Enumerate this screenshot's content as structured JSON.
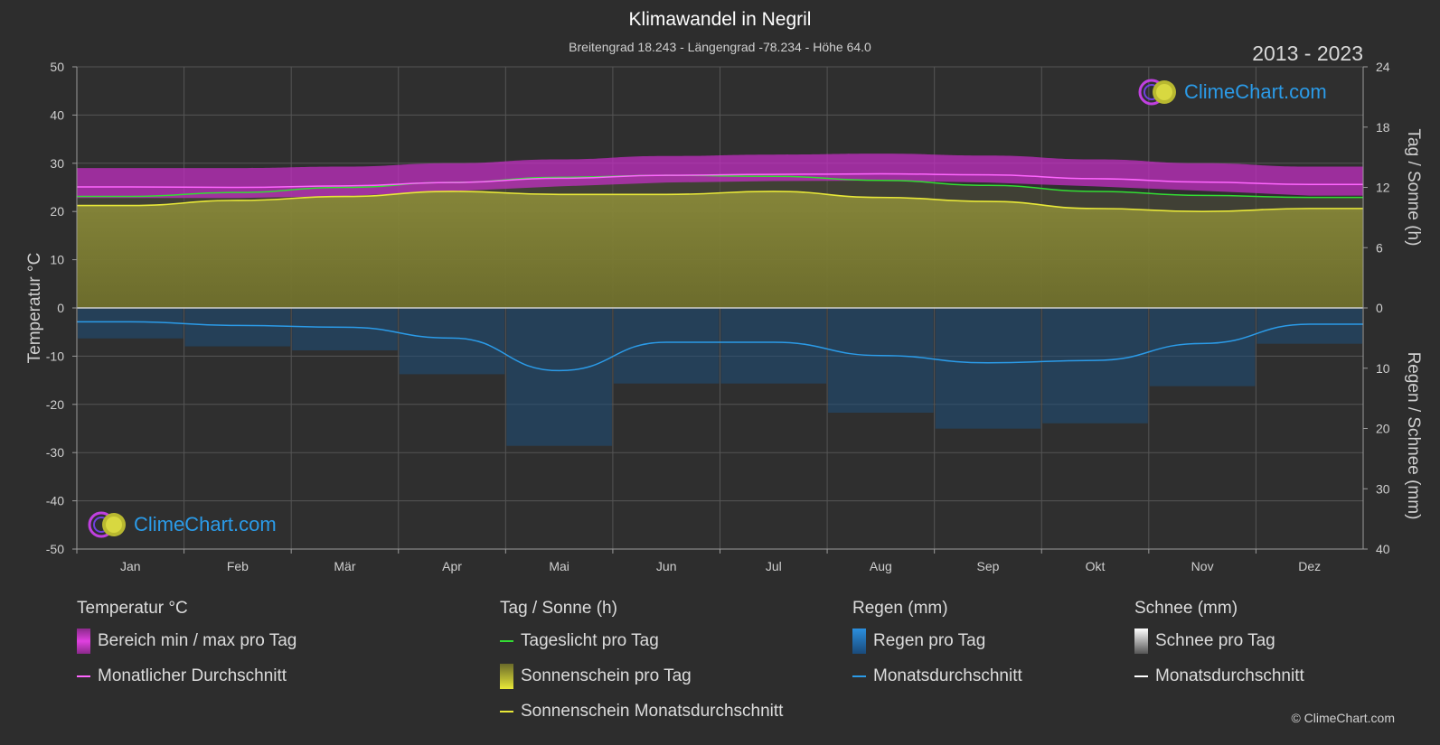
{
  "header": {
    "title": "Klimawandel in Negril",
    "subtitle": "Breitengrad 18.243 - Längengrad -78.234 - Höhe 64.0",
    "period": "2013 - 2023"
  },
  "logo_text": "ClimeChart.com",
  "copyright": "© ClimeChart.com",
  "chart_data": {
    "type": "area",
    "categories": [
      "Jan",
      "Feb",
      "Mär",
      "Apr",
      "Mai",
      "Jun",
      "Jul",
      "Aug",
      "Sep",
      "Okt",
      "Nov",
      "Dez"
    ],
    "y_left": {
      "label": "Temperatur °C",
      "range": [
        -50,
        50
      ],
      "ticks": [
        50,
        40,
        30,
        20,
        10,
        0,
        -10,
        -20,
        -30,
        -40,
        -50
      ]
    },
    "y_right_top": {
      "label": "Tag / Sonne (h)",
      "range": [
        0,
        24
      ],
      "ticks": [
        24,
        18,
        12,
        6,
        0
      ]
    },
    "y_right_bottom": {
      "label": "Regen / Schnee (mm)",
      "range": [
        0,
        40
      ],
      "ticks": [
        0,
        10,
        20,
        30,
        40
      ]
    },
    "grid": true,
    "series": [
      {
        "name": "Bereich min / max pro Tag",
        "unit": "°C",
        "min": [
          22.8,
          22.8,
          23.2,
          24.2,
          25.2,
          26.0,
          26.3,
          26.4,
          26.0,
          25.2,
          24.3,
          23.3
        ],
        "max": [
          29.0,
          29.0,
          29.3,
          30.0,
          30.8,
          31.5,
          31.8,
          32.0,
          31.6,
          30.8,
          30.0,
          29.3
        ]
      },
      {
        "name": "Monatlicher Durchschnitt",
        "unit": "°C",
        "color": "#ff66ff",
        "values": [
          25.1,
          25.0,
          25.3,
          26.0,
          26.9,
          27.5,
          27.7,
          27.8,
          27.6,
          26.8,
          26.1,
          25.6
        ]
      },
      {
        "name": "Tageslicht pro Tag",
        "unit": "h",
        "color": "#33dd33",
        "values": [
          11.1,
          11.5,
          12.0,
          12.5,
          13.0,
          13.2,
          13.1,
          12.7,
          12.2,
          11.6,
          11.2,
          11.0
        ]
      },
      {
        "name": "Sonnenschein Monatsdurchschnitt",
        "unit": "h",
        "color": "#e8e838",
        "values": [
          10.2,
          10.7,
          11.1,
          11.6,
          11.3,
          11.3,
          11.6,
          11.0,
          10.6,
          9.9,
          9.6,
          9.9
        ]
      },
      {
        "name": "Regen Monatsdurchschnitt",
        "unit": "mm",
        "color": "#2b9be8",
        "values": [
          2.3,
          2.9,
          3.2,
          5.0,
          10.4,
          5.7,
          5.7,
          7.9,
          9.1,
          8.7,
          5.9,
          2.7
        ]
      },
      {
        "name": "Schnee Monatsdurchschnitt",
        "unit": "mm",
        "color": "#ffffff",
        "values": [
          0,
          0,
          0,
          0,
          0,
          0,
          0,
          0,
          0,
          0,
          0,
          0
        ]
      }
    ]
  },
  "legend": {
    "groups": [
      {
        "title": "Temperatur °C",
        "items": [
          {
            "label": "Bereich min / max pro Tag",
            "kind": "box",
            "color": "#d62bd6"
          },
          {
            "label": "Monatlicher Durchschnitt",
            "kind": "line",
            "color": "#ff66ff"
          }
        ]
      },
      {
        "title": "Tag / Sonne (h)",
        "items": [
          {
            "label": "Tageslicht pro Tag",
            "kind": "line",
            "color": "#33dd33"
          },
          {
            "label": "Sonnenschein pro Tag",
            "kind": "box",
            "color": "#e8e838"
          },
          {
            "label": "Sonnenschein Monatsdurchschnitt",
            "kind": "line",
            "color": "#e8e838"
          }
        ]
      },
      {
        "title": "Regen (mm)",
        "items": [
          {
            "label": "Regen pro Tag",
            "kind": "box",
            "color": "#2b8fdf"
          },
          {
            "label": "Monatsdurchschnitt",
            "kind": "line",
            "color": "#2b9be8"
          }
        ]
      },
      {
        "title": "Schnee (mm)",
        "items": [
          {
            "label": "Schnee pro Tag",
            "kind": "box",
            "color": "#dddddd"
          },
          {
            "label": "Monatsdurchschnitt",
            "kind": "line",
            "color": "#ffffff"
          }
        ]
      }
    ]
  }
}
